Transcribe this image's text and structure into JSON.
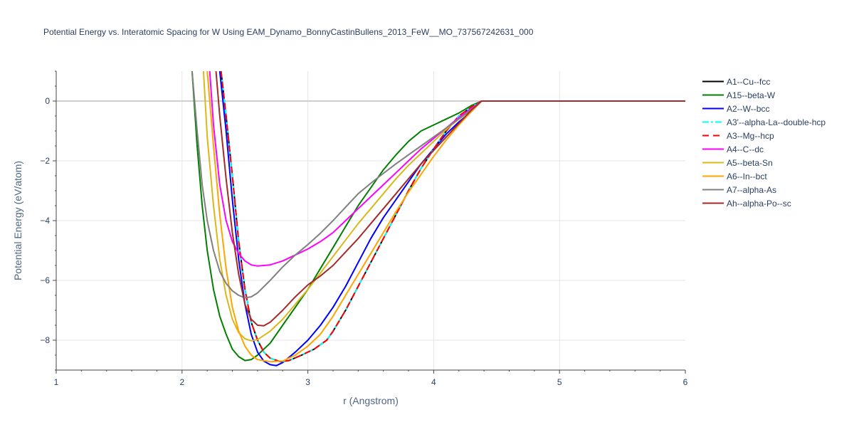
{
  "chart_data": {
    "type": "line",
    "title": "Potential Energy vs. Interatomic Spacing for W Using EAM_Dynamo_BonnyCastinBullens_2013_FeW__MO_737567242631_000",
    "xlabel": "r (Angstrom)",
    "ylabel": "Potential Energy (eV/atom)",
    "xlim": [
      1,
      6
    ],
    "ylim": [
      -9,
      1
    ],
    "x_ticks": [
      1,
      2,
      3,
      4,
      5,
      6
    ],
    "y_ticks": [
      0,
      -2,
      -4,
      -6,
      -8
    ],
    "y_tick_labels": [
      "0",
      "−2",
      "−4",
      "−6",
      "−8"
    ],
    "grid": true,
    "legend_position": "right",
    "series": [
      {
        "name": "A1--Cu--fcc",
        "color": "#000000",
        "dash": "solid",
        "points": [
          [
            2.31,
            1.0
          ],
          [
            2.35,
            -0.5
          ],
          [
            2.4,
            -2.5
          ],
          [
            2.45,
            -4.7
          ],
          [
            2.5,
            -6.3
          ],
          [
            2.55,
            -7.4
          ],
          [
            2.6,
            -8.0
          ],
          [
            2.65,
            -8.4
          ],
          [
            2.7,
            -8.6
          ],
          [
            2.78,
            -8.72
          ],
          [
            2.85,
            -8.68
          ],
          [
            2.95,
            -8.5
          ],
          [
            3.05,
            -8.3
          ],
          [
            3.15,
            -8.0
          ],
          [
            3.2,
            -7.7
          ],
          [
            3.3,
            -7.0
          ],
          [
            3.4,
            -6.2
          ],
          [
            3.5,
            -5.4
          ],
          [
            3.6,
            -4.6
          ],
          [
            3.7,
            -3.8
          ],
          [
            3.8,
            -3.0
          ],
          [
            3.9,
            -2.25
          ],
          [
            4.0,
            -1.6
          ],
          [
            4.1,
            -1.0
          ],
          [
            4.2,
            -0.5
          ],
          [
            4.3,
            -0.2
          ],
          [
            4.38,
            0.0
          ],
          [
            4.4,
            0.0
          ],
          [
            6.0,
            0.0
          ]
        ]
      },
      {
        "name": "A15--beta-W",
        "color": "#008000",
        "dash": "solid",
        "points": [
          [
            2.08,
            1.0
          ],
          [
            2.12,
            -1.5
          ],
          [
            2.16,
            -3.5
          ],
          [
            2.2,
            -5.0
          ],
          [
            2.25,
            -6.3
          ],
          [
            2.3,
            -7.2
          ],
          [
            2.35,
            -7.8
          ],
          [
            2.4,
            -8.3
          ],
          [
            2.45,
            -8.55
          ],
          [
            2.5,
            -8.68
          ],
          [
            2.55,
            -8.65
          ],
          [
            2.6,
            -8.5
          ],
          [
            2.7,
            -8.1
          ],
          [
            2.8,
            -7.5
          ],
          [
            2.9,
            -6.9
          ],
          [
            3.0,
            -6.3
          ],
          [
            3.1,
            -5.6
          ],
          [
            3.2,
            -4.9
          ],
          [
            3.3,
            -4.2
          ],
          [
            3.4,
            -3.5
          ],
          [
            3.5,
            -2.9
          ],
          [
            3.6,
            -2.3
          ],
          [
            3.7,
            -1.8
          ],
          [
            3.8,
            -1.35
          ],
          [
            3.9,
            -1.0
          ],
          [
            4.0,
            -0.8
          ],
          [
            4.1,
            -0.6
          ],
          [
            4.2,
            -0.4
          ],
          [
            4.3,
            -0.15
          ],
          [
            4.38,
            0.0
          ],
          [
            4.4,
            0.0
          ],
          [
            6.0,
            0.0
          ]
        ]
      },
      {
        "name": "A2--W--bcc",
        "color": "#0000ff",
        "dash": "solid",
        "points": [
          [
            2.3,
            1.0
          ],
          [
            2.35,
            -1.0
          ],
          [
            2.4,
            -3.3
          ],
          [
            2.45,
            -5.3
          ],
          [
            2.5,
            -6.8
          ],
          [
            2.55,
            -7.8
          ],
          [
            2.6,
            -8.4
          ],
          [
            2.65,
            -8.7
          ],
          [
            2.7,
            -8.82
          ],
          [
            2.75,
            -8.85
          ],
          [
            2.8,
            -8.75
          ],
          [
            2.9,
            -8.4
          ],
          [
            3.0,
            -8.0
          ],
          [
            3.1,
            -7.5
          ],
          [
            3.2,
            -6.9
          ],
          [
            3.3,
            -6.2
          ],
          [
            3.4,
            -5.4
          ],
          [
            3.5,
            -4.6
          ],
          [
            3.6,
            -3.9
          ],
          [
            3.7,
            -3.3
          ],
          [
            3.8,
            -2.7
          ],
          [
            3.9,
            -2.1
          ],
          [
            4.0,
            -1.6
          ],
          [
            4.1,
            -1.1
          ],
          [
            4.2,
            -0.7
          ],
          [
            4.3,
            -0.35
          ],
          [
            4.38,
            0.0
          ],
          [
            4.4,
            0.0
          ],
          [
            6.0,
            0.0
          ]
        ]
      },
      {
        "name": "A3'--alpha-La--double-hcp",
        "color": "#00ffff",
        "dash": "dashdot",
        "points": [
          [
            2.31,
            1.0
          ],
          [
            2.35,
            -0.5
          ],
          [
            2.4,
            -2.5
          ],
          [
            2.45,
            -4.7
          ],
          [
            2.5,
            -6.3
          ],
          [
            2.55,
            -7.4
          ],
          [
            2.6,
            -8.0
          ],
          [
            2.65,
            -8.4
          ],
          [
            2.7,
            -8.6
          ],
          [
            2.78,
            -8.72
          ],
          [
            2.85,
            -8.68
          ],
          [
            2.95,
            -8.5
          ],
          [
            3.05,
            -8.3
          ],
          [
            3.15,
            -8.0
          ],
          [
            3.2,
            -7.7
          ],
          [
            3.3,
            -7.0
          ],
          [
            3.4,
            -6.2
          ],
          [
            3.5,
            -5.4
          ],
          [
            3.6,
            -4.6
          ],
          [
            3.7,
            -3.8
          ],
          [
            3.8,
            -3.0
          ],
          [
            3.9,
            -2.25
          ],
          [
            4.0,
            -1.6
          ],
          [
            4.1,
            -1.0
          ],
          [
            4.2,
            -0.5
          ],
          [
            4.3,
            -0.2
          ],
          [
            4.38,
            0.0
          ],
          [
            4.4,
            0.0
          ],
          [
            6.0,
            0.0
          ]
        ]
      },
      {
        "name": "A3--Mg--hcp",
        "color": "#ff0000",
        "dash": "dash",
        "points": [
          [
            2.31,
            1.0
          ],
          [
            2.35,
            -0.5
          ],
          [
            2.4,
            -2.5
          ],
          [
            2.45,
            -4.7
          ],
          [
            2.5,
            -6.3
          ],
          [
            2.55,
            -7.4
          ],
          [
            2.6,
            -8.0
          ],
          [
            2.65,
            -8.4
          ],
          [
            2.7,
            -8.6
          ],
          [
            2.78,
            -8.72
          ],
          [
            2.85,
            -8.68
          ],
          [
            2.95,
            -8.5
          ],
          [
            3.05,
            -8.3
          ],
          [
            3.15,
            -8.0
          ],
          [
            3.2,
            -7.7
          ],
          [
            3.3,
            -7.0
          ],
          [
            3.4,
            -6.2
          ],
          [
            3.5,
            -5.4
          ],
          [
            3.6,
            -4.6
          ],
          [
            3.7,
            -3.8
          ],
          [
            3.8,
            -3.0
          ],
          [
            3.9,
            -2.25
          ],
          [
            4.0,
            -1.6
          ],
          [
            4.1,
            -1.0
          ],
          [
            4.2,
            -0.5
          ],
          [
            4.3,
            -0.2
          ],
          [
            4.38,
            0.0
          ],
          [
            4.4,
            0.0
          ],
          [
            6.0,
            0.0
          ]
        ]
      },
      {
        "name": "A4--C--dc",
        "color": "#ff00ff",
        "dash": "solid",
        "points": [
          [
            2.22,
            1.0
          ],
          [
            2.25,
            -0.8
          ],
          [
            2.3,
            -2.8
          ],
          [
            2.35,
            -4.0
          ],
          [
            2.4,
            -4.7
          ],
          [
            2.45,
            -5.1
          ],
          [
            2.5,
            -5.35
          ],
          [
            2.55,
            -5.48
          ],
          [
            2.6,
            -5.52
          ],
          [
            2.7,
            -5.48
          ],
          [
            2.8,
            -5.35
          ],
          [
            2.9,
            -5.15
          ],
          [
            3.0,
            -4.95
          ],
          [
            3.1,
            -4.7
          ],
          [
            3.2,
            -4.4
          ],
          [
            3.3,
            -4.0
          ],
          [
            3.4,
            -3.6
          ],
          [
            3.5,
            -3.2
          ],
          [
            3.6,
            -2.8
          ],
          [
            3.7,
            -2.4
          ],
          [
            3.8,
            -2.0
          ],
          [
            3.9,
            -1.6
          ],
          [
            4.0,
            -1.25
          ],
          [
            4.1,
            -0.9
          ],
          [
            4.2,
            -0.55
          ],
          [
            4.3,
            -0.25
          ],
          [
            4.38,
            0.0
          ],
          [
            4.4,
            0.0
          ],
          [
            6.0,
            0.0
          ]
        ]
      },
      {
        "name": "A5--beta-Sn",
        "color": "#dab81a",
        "dash": "solid",
        "points": [
          [
            2.17,
            1.0
          ],
          [
            2.2,
            -1.2
          ],
          [
            2.25,
            -3.5
          ],
          [
            2.3,
            -5.3
          ],
          [
            2.35,
            -6.5
          ],
          [
            2.4,
            -7.3
          ],
          [
            2.45,
            -7.75
          ],
          [
            2.5,
            -7.95
          ],
          [
            2.55,
            -8.02
          ],
          [
            2.6,
            -7.98
          ],
          [
            2.7,
            -7.7
          ],
          [
            2.8,
            -7.3
          ],
          [
            2.9,
            -6.8
          ],
          [
            3.0,
            -6.3
          ],
          [
            3.1,
            -5.75
          ],
          [
            3.2,
            -5.2
          ],
          [
            3.3,
            -4.65
          ],
          [
            3.4,
            -4.1
          ],
          [
            3.5,
            -3.6
          ],
          [
            3.6,
            -3.1
          ],
          [
            3.7,
            -2.6
          ],
          [
            3.8,
            -2.15
          ],
          [
            3.9,
            -1.75
          ],
          [
            4.0,
            -1.35
          ],
          [
            4.1,
            -0.95
          ],
          [
            4.2,
            -0.6
          ],
          [
            4.3,
            -0.3
          ],
          [
            4.38,
            0.0
          ],
          [
            4.4,
            0.0
          ],
          [
            6.0,
            0.0
          ]
        ]
      },
      {
        "name": "A6--In--bct",
        "color": "#ffa500",
        "dash": "solid",
        "points": [
          [
            2.2,
            1.0
          ],
          [
            2.25,
            -1.5
          ],
          [
            2.3,
            -3.8
          ],
          [
            2.35,
            -5.6
          ],
          [
            2.4,
            -6.9
          ],
          [
            2.45,
            -7.7
          ],
          [
            2.5,
            -8.2
          ],
          [
            2.55,
            -8.5
          ],
          [
            2.6,
            -8.65
          ],
          [
            2.7,
            -8.72
          ],
          [
            2.8,
            -8.7
          ],
          [
            2.9,
            -8.5
          ],
          [
            3.0,
            -8.2
          ],
          [
            3.1,
            -7.8
          ],
          [
            3.2,
            -7.2
          ],
          [
            3.3,
            -6.5
          ],
          [
            3.4,
            -5.8
          ],
          [
            3.5,
            -5.1
          ],
          [
            3.6,
            -4.4
          ],
          [
            3.7,
            -3.7
          ],
          [
            3.8,
            -3.05
          ],
          [
            3.9,
            -2.45
          ],
          [
            4.0,
            -1.85
          ],
          [
            4.1,
            -1.3
          ],
          [
            4.2,
            -0.8
          ],
          [
            4.3,
            -0.35
          ],
          [
            4.38,
            0.0
          ],
          [
            4.4,
            0.0
          ],
          [
            6.0,
            0.0
          ]
        ]
      },
      {
        "name": "A7--alpha-As",
        "color": "#808080",
        "dash": "solid",
        "points": [
          [
            2.08,
            1.0
          ],
          [
            2.12,
            -1.0
          ],
          [
            2.16,
            -2.8
          ],
          [
            2.2,
            -4.0
          ],
          [
            2.25,
            -5.0
          ],
          [
            2.3,
            -5.7
          ],
          [
            2.35,
            -6.1
          ],
          [
            2.4,
            -6.35
          ],
          [
            2.45,
            -6.5
          ],
          [
            2.5,
            -6.58
          ],
          [
            2.55,
            -6.55
          ],
          [
            2.6,
            -6.42
          ],
          [
            2.7,
            -6.0
          ],
          [
            2.8,
            -5.55
          ],
          [
            2.9,
            -5.15
          ],
          [
            3.0,
            -4.8
          ],
          [
            3.1,
            -4.42
          ],
          [
            3.2,
            -4.0
          ],
          [
            3.3,
            -3.55
          ],
          [
            3.4,
            -3.1
          ],
          [
            3.5,
            -2.75
          ],
          [
            3.6,
            -2.42
          ],
          [
            3.7,
            -2.1
          ],
          [
            3.8,
            -1.8
          ],
          [
            3.9,
            -1.5
          ],
          [
            4.0,
            -1.2
          ],
          [
            4.1,
            -0.9
          ],
          [
            4.2,
            -0.6
          ],
          [
            4.3,
            -0.28
          ],
          [
            4.38,
            0.0
          ],
          [
            4.4,
            0.0
          ],
          [
            6.0,
            0.0
          ]
        ]
      },
      {
        "name": "Ah--alpha-Po--sc",
        "color": "#a52a2a",
        "dash": "solid",
        "points": [
          [
            2.27,
            1.0
          ],
          [
            2.3,
            -0.5
          ],
          [
            2.35,
            -2.6
          ],
          [
            2.4,
            -4.4
          ],
          [
            2.45,
            -5.8
          ],
          [
            2.5,
            -6.8
          ],
          [
            2.55,
            -7.3
          ],
          [
            2.6,
            -7.5
          ],
          [
            2.65,
            -7.52
          ],
          [
            2.7,
            -7.4
          ],
          [
            2.8,
            -7.0
          ],
          [
            2.9,
            -6.55
          ],
          [
            3.0,
            -6.15
          ],
          [
            3.1,
            -5.85
          ],
          [
            3.2,
            -5.5
          ],
          [
            3.3,
            -5.05
          ],
          [
            3.4,
            -4.6
          ],
          [
            3.5,
            -4.1
          ],
          [
            3.6,
            -3.6
          ],
          [
            3.7,
            -3.1
          ],
          [
            3.8,
            -2.6
          ],
          [
            3.9,
            -2.1
          ],
          [
            4.0,
            -1.65
          ],
          [
            4.1,
            -1.2
          ],
          [
            4.2,
            -0.75
          ],
          [
            4.3,
            -0.3
          ],
          [
            4.38,
            0.0
          ],
          [
            4.4,
            0.0
          ],
          [
            6.0,
            0.0
          ]
        ]
      }
    ]
  }
}
